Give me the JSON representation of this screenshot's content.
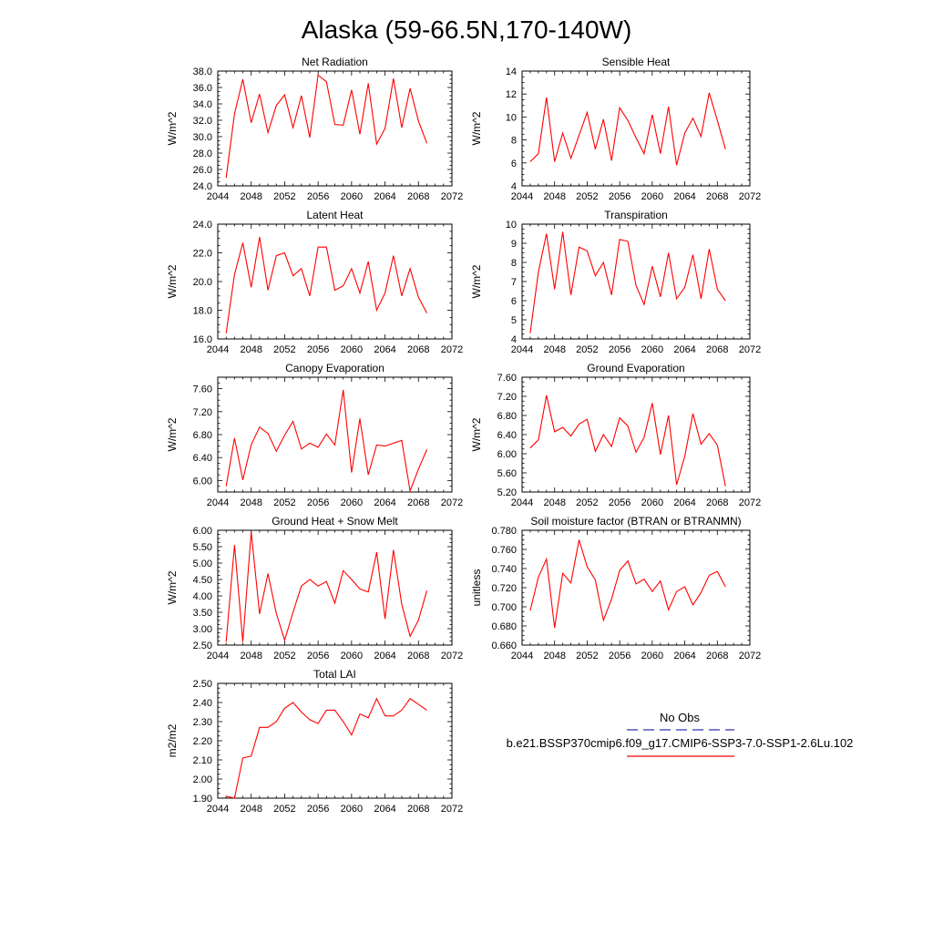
{
  "title": "Alaska (59-66.5N,170-140W)",
  "legend": {
    "obs_label": "No Obs",
    "case_label": "b.e21.BSSP370cmip6.f09_g17.CMIP6-SSP3-7.0-SSP1-2.6Lu.102",
    "obs_color": "#3333aa",
    "case_color": "#ff0000"
  },
  "chart_data": [
    {
      "type": "line",
      "title": "Net Radiation",
      "ylabel": "W/m^2",
      "xlim": [
        2044,
        2072
      ],
      "ylim": [
        24,
        38
      ],
      "xticks": [
        2044,
        2048,
        2052,
        2056,
        2060,
        2064,
        2068,
        2072
      ],
      "yticks": [
        "24.0",
        "26.0",
        "28.0",
        "30.0",
        "32.0",
        "34.0",
        "36.0",
        "38.0"
      ],
      "series": [
        {
          "color": "#ff0000",
          "x": [
            2045,
            2046,
            2047,
            2048,
            2049,
            2050,
            2051,
            2052,
            2053,
            2054,
            2055,
            2056,
            2057,
            2058,
            2059,
            2060,
            2061,
            2062,
            2063,
            2064,
            2065,
            2066,
            2067,
            2068,
            2069
          ],
          "values": [
            25.0,
            32.8,
            37.0,
            31.7,
            35.2,
            30.5,
            33.8,
            35.1,
            31.1,
            35.0,
            29.9,
            37.5,
            36.7,
            31.5,
            31.4,
            35.7,
            30.3,
            36.5,
            29.1,
            31.0,
            37.1,
            31.1,
            35.9,
            31.9,
            29.2
          ]
        }
      ]
    },
    {
      "type": "line",
      "title": "Sensible Heat",
      "ylabel": "W/m^2",
      "xlim": [
        2044,
        2072
      ],
      "ylim": [
        4,
        14
      ],
      "xticks": [
        2044,
        2048,
        2052,
        2056,
        2060,
        2064,
        2068,
        2072
      ],
      "yticks": [
        "4",
        "6",
        "8",
        "10",
        "12",
        "14"
      ],
      "series": [
        {
          "color": "#ff0000",
          "x": [
            2045,
            2046,
            2047,
            2048,
            2049,
            2050,
            2051,
            2052,
            2053,
            2054,
            2055,
            2056,
            2057,
            2058,
            2059,
            2060,
            2061,
            2062,
            2063,
            2064,
            2065,
            2066,
            2067,
            2068,
            2069
          ],
          "values": [
            6.1,
            6.8,
            11.7,
            6.1,
            8.6,
            6.4,
            8.4,
            10.4,
            7.2,
            9.8,
            6.2,
            10.8,
            9.7,
            8.2,
            6.8,
            10.2,
            6.8,
            10.9,
            5.8,
            8.6,
            9.9,
            8.3,
            12.1,
            9.7,
            7.2
          ]
        }
      ]
    },
    {
      "type": "line",
      "title": "Latent Heat",
      "ylabel": "W/m^2",
      "xlim": [
        2044,
        2072
      ],
      "ylim": [
        16,
        24
      ],
      "xticks": [
        2044,
        2048,
        2052,
        2056,
        2060,
        2064,
        2068,
        2072
      ],
      "yticks": [
        "16.0",
        "18.0",
        "20.0",
        "22.0",
        "24.0"
      ],
      "series": [
        {
          "color": "#ff0000",
          "x": [
            2045,
            2046,
            2047,
            2048,
            2049,
            2050,
            2051,
            2052,
            2053,
            2054,
            2055,
            2056,
            2057,
            2058,
            2059,
            2060,
            2061,
            2062,
            2063,
            2064,
            2065,
            2066,
            2067,
            2068,
            2069
          ],
          "values": [
            16.4,
            20.5,
            22.7,
            19.6,
            23.1,
            19.4,
            21.8,
            22.0,
            20.4,
            20.9,
            19.0,
            22.4,
            22.4,
            19.4,
            19.7,
            20.9,
            19.2,
            21.4,
            18.0,
            19.2,
            21.8,
            19.0,
            20.9,
            18.9,
            17.8
          ]
        }
      ]
    },
    {
      "type": "line",
      "title": "Transpiration",
      "ylabel": "W/m^2",
      "xlim": [
        2044,
        2072
      ],
      "ylim": [
        4,
        10
      ],
      "xticks": [
        2044,
        2048,
        2052,
        2056,
        2060,
        2064,
        2068,
        2072
      ],
      "yticks": [
        "4",
        "5",
        "6",
        "7",
        "8",
        "9",
        "10"
      ],
      "series": [
        {
          "color": "#ff0000",
          "x": [
            2045,
            2046,
            2047,
            2048,
            2049,
            2050,
            2051,
            2052,
            2053,
            2054,
            2055,
            2056,
            2057,
            2058,
            2059,
            2060,
            2061,
            2062,
            2063,
            2064,
            2065,
            2066,
            2067,
            2068,
            2069
          ],
          "values": [
            4.3,
            7.5,
            9.5,
            6.6,
            9.6,
            6.3,
            8.8,
            8.6,
            7.3,
            8.0,
            6.3,
            9.2,
            9.1,
            6.8,
            5.8,
            7.8,
            6.2,
            8.5,
            6.1,
            6.7,
            8.4,
            6.1,
            8.7,
            6.6,
            6.0
          ]
        }
      ]
    },
    {
      "type": "line",
      "title": "Canopy Evaporation",
      "ylabel": "W/m^2",
      "xlim": [
        2044,
        2072
      ],
      "ylim": [
        5.8,
        7.8
      ],
      "xticks": [
        2044,
        2048,
        2052,
        2056,
        2060,
        2064,
        2068,
        2072
      ],
      "yticks": [
        "6.00",
        "6.40",
        "6.80",
        "7.20",
        "7.60"
      ],
      "series": [
        {
          "color": "#ff0000",
          "x": [
            2045,
            2046,
            2047,
            2048,
            2049,
            2050,
            2051,
            2052,
            2053,
            2054,
            2055,
            2056,
            2057,
            2058,
            2059,
            2060,
            2061,
            2062,
            2063,
            2064,
            2065,
            2066,
            2067,
            2068,
            2069
          ],
          "values": [
            5.9,
            6.74,
            6.01,
            6.62,
            6.93,
            6.82,
            6.51,
            6.79,
            7.03,
            6.55,
            6.65,
            6.58,
            6.81,
            6.62,
            7.58,
            6.14,
            7.08,
            6.1,
            6.62,
            6.6,
            6.65,
            6.7,
            5.82,
            6.2,
            6.54
          ]
        }
      ]
    },
    {
      "type": "line",
      "title": "Ground Evaporation",
      "ylabel": "W/m^2",
      "xlim": [
        2044,
        2072
      ],
      "ylim": [
        5.2,
        7.6
      ],
      "xticks": [
        2044,
        2048,
        2052,
        2056,
        2060,
        2064,
        2068,
        2072
      ],
      "yticks": [
        "5.20",
        "5.60",
        "6.00",
        "6.40",
        "6.80",
        "7.20",
        "7.60"
      ],
      "series": [
        {
          "color": "#ff0000",
          "x": [
            2045,
            2046,
            2047,
            2048,
            2049,
            2050,
            2051,
            2052,
            2053,
            2054,
            2055,
            2056,
            2057,
            2058,
            2059,
            2060,
            2061,
            2062,
            2063,
            2064,
            2065,
            2066,
            2067,
            2068,
            2069
          ],
          "values": [
            6.12,
            6.29,
            7.22,
            6.46,
            6.55,
            6.37,
            6.62,
            6.72,
            6.05,
            6.4,
            6.15,
            6.75,
            6.58,
            6.03,
            6.34,
            7.06,
            5.98,
            6.8,
            5.35,
            5.95,
            6.84,
            6.2,
            6.42,
            6.18,
            5.32
          ]
        }
      ]
    },
    {
      "type": "line",
      "title": "Ground Heat + Snow Melt",
      "ylabel": "W/m^2",
      "xlim": [
        2044,
        2072
      ],
      "ylim": [
        2.5,
        6.0
      ],
      "xticks": [
        2044,
        2048,
        2052,
        2056,
        2060,
        2064,
        2068,
        2072
      ],
      "yticks": [
        "2.50",
        "3.00",
        "3.50",
        "4.00",
        "4.50",
        "5.00",
        "5.50",
        "6.00"
      ],
      "series": [
        {
          "color": "#ff0000",
          "x": [
            2045,
            2046,
            2047,
            2048,
            2049,
            2050,
            2051,
            2052,
            2053,
            2054,
            2055,
            2056,
            2057,
            2058,
            2059,
            2060,
            2061,
            2062,
            2063,
            2064,
            2065,
            2066,
            2067,
            2068,
            2069
          ],
          "values": [
            2.6,
            5.55,
            2.6,
            5.95,
            3.45,
            4.68,
            3.46,
            2.65,
            3.5,
            4.3,
            4.5,
            4.3,
            4.44,
            3.78,
            4.77,
            4.5,
            4.21,
            4.12,
            5.33,
            3.3,
            5.4,
            3.75,
            2.77,
            3.26,
            4.16
          ]
        }
      ]
    },
    {
      "type": "line",
      "title": "Soil moisture factor (BTRAN or BTRANMN)",
      "ylabel": "unitless",
      "xlim": [
        2044,
        2072
      ],
      "ylim": [
        0.66,
        0.78
      ],
      "xticks": [
        2044,
        2048,
        2052,
        2056,
        2060,
        2064,
        2068,
        2072
      ],
      "yticks": [
        "0.660",
        "0.680",
        "0.700",
        "0.720",
        "0.740",
        "0.760",
        "0.780"
      ],
      "series": [
        {
          "color": "#ff0000",
          "x": [
            2045,
            2046,
            2047,
            2048,
            2049,
            2050,
            2051,
            2052,
            2053,
            2054,
            2055,
            2056,
            2057,
            2058,
            2059,
            2060,
            2061,
            2062,
            2063,
            2064,
            2065,
            2066,
            2067,
            2068,
            2069
          ],
          "values": [
            0.696,
            0.731,
            0.75,
            0.678,
            0.735,
            0.725,
            0.77,
            0.742,
            0.728,
            0.686,
            0.708,
            0.738,
            0.748,
            0.724,
            0.729,
            0.716,
            0.727,
            0.697,
            0.716,
            0.721,
            0.702,
            0.715,
            0.733,
            0.737,
            0.721
          ]
        }
      ]
    },
    {
      "type": "line",
      "title": "Total LAI",
      "ylabel": "m2/m2",
      "xlim": [
        2044,
        2072
      ],
      "ylim": [
        1.9,
        2.5
      ],
      "xticks": [
        2044,
        2048,
        2052,
        2056,
        2060,
        2064,
        2068,
        2072
      ],
      "yticks": [
        "1.90",
        "2.00",
        "2.10",
        "2.20",
        "2.30",
        "2.40",
        "2.50"
      ],
      "series": [
        {
          "color": "#ff0000",
          "x": [
            2045,
            2046,
            2047,
            2048,
            2049,
            2050,
            2051,
            2052,
            2053,
            2054,
            2055,
            2056,
            2057,
            2058,
            2059,
            2060,
            2061,
            2062,
            2063,
            2064,
            2065,
            2066,
            2067,
            2068,
            2069
          ],
          "values": [
            1.91,
            1.9,
            2.11,
            2.12,
            2.27,
            2.27,
            2.3,
            2.37,
            2.4,
            2.35,
            2.31,
            2.29,
            2.36,
            2.36,
            2.3,
            2.23,
            2.34,
            2.32,
            2.42,
            2.33,
            2.33,
            2.36,
            2.42,
            2.39,
            2.36
          ]
        }
      ]
    }
  ]
}
